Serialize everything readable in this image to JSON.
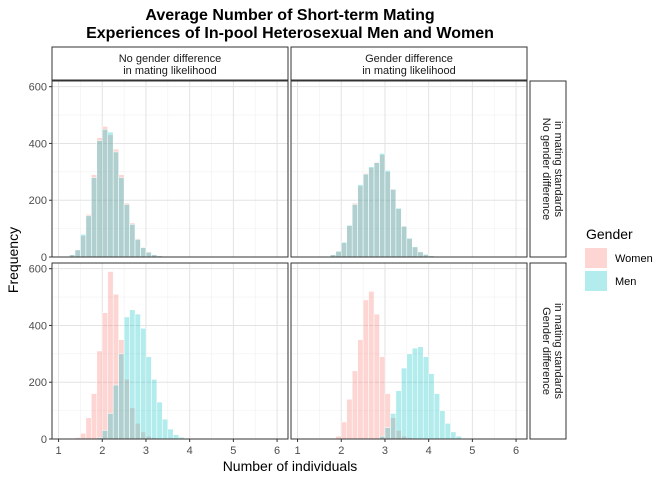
{
  "chart_data": {
    "type": "bar",
    "title_lines": [
      "Average Number of Short-term Mating",
      "Experiences of In-pool Heterosexual Men and Women"
    ],
    "xlabel": "Number of individuals",
    "ylabel": "Frequency",
    "xlim": [
      0.85,
      6.25
    ],
    "ylim": [
      0,
      620
    ],
    "x_ticks": [
      1,
      2,
      3,
      4,
      5,
      6
    ],
    "y_ticks": [
      0,
      200,
      400,
      600
    ],
    "grid": true,
    "bin_width": 0.125,
    "column_strips": [
      [
        "No gender difference",
        "in mating likelihood"
      ],
      [
        "Gender difference",
        "in mating likelihood"
      ]
    ],
    "row_strips": [
      [
        "No gender difference",
        "in mating standards"
      ],
      [
        "Gender difference",
        "in mating standards"
      ]
    ],
    "legend": {
      "title": "Gender",
      "position": "right",
      "entries": [
        {
          "name": "Women",
          "color": "#F8766D"
        },
        {
          "name": "Men",
          "color": "#00BFC4"
        }
      ]
    },
    "panels": [
      {
        "row": 0,
        "col": 0,
        "series": [
          {
            "name": "Women",
            "start": 1.25,
            "values": [
              8,
              25,
              75,
              150,
              290,
              420,
              460,
              430,
              380,
              290,
              190,
              120,
              65,
              35,
              18,
              8,
              4,
              2
            ]
          },
          {
            "name": "Men",
            "start": 1.25,
            "values": [
              8,
              25,
              80,
              145,
              280,
              410,
              450,
              440,
              370,
              280,
              185,
              115,
              62,
              33,
              17,
              8,
              4,
              2
            ]
          }
        ]
      },
      {
        "row": 0,
        "col": 1,
        "series": [
          {
            "name": "Women",
            "start": 1.75,
            "values": [
              8,
              20,
              50,
              110,
              190,
              250,
              295,
              315,
              335,
              360,
              300,
              240,
              170,
              110,
              65,
              35,
              18,
              9,
              4,
              2
            ]
          },
          {
            "name": "Men",
            "start": 1.75,
            "values": [
              8,
              20,
              52,
              112,
              185,
              255,
              292,
              318,
              332,
              365,
              305,
              238,
              172,
              108,
              66,
              36,
              18,
              9,
              4,
              2
            ]
          }
        ]
      },
      {
        "row": 1,
        "col": 0,
        "series": [
          {
            "name": "Women",
            "start": 1.375,
            "values": [
              5,
              20,
              75,
              160,
              310,
              445,
              590,
              510,
              350,
              210,
              110,
              55,
              25,
              10,
              4
            ]
          },
          {
            "name": "Men",
            "start": 1.875,
            "values": [
              5,
              30,
              90,
              190,
              300,
              430,
              455,
              440,
              390,
              290,
              210,
              130,
              70,
              35,
              15,
              6
            ]
          }
        ]
      },
      {
        "row": 1,
        "col": 1,
        "series": [
          {
            "name": "Women",
            "start": 1.875,
            "values": [
              10,
              60,
              140,
              240,
              350,
              490,
              520,
              440,
              290,
              160,
              75,
              30,
              10,
              4
            ]
          },
          {
            "name": "Men",
            "start": 2.875,
            "values": [
              10,
              40,
              90,
              170,
              250,
              300,
              320,
              325,
              290,
              230,
              160,
              100,
              55,
              25,
              10
            ]
          }
        ]
      }
    ]
  }
}
